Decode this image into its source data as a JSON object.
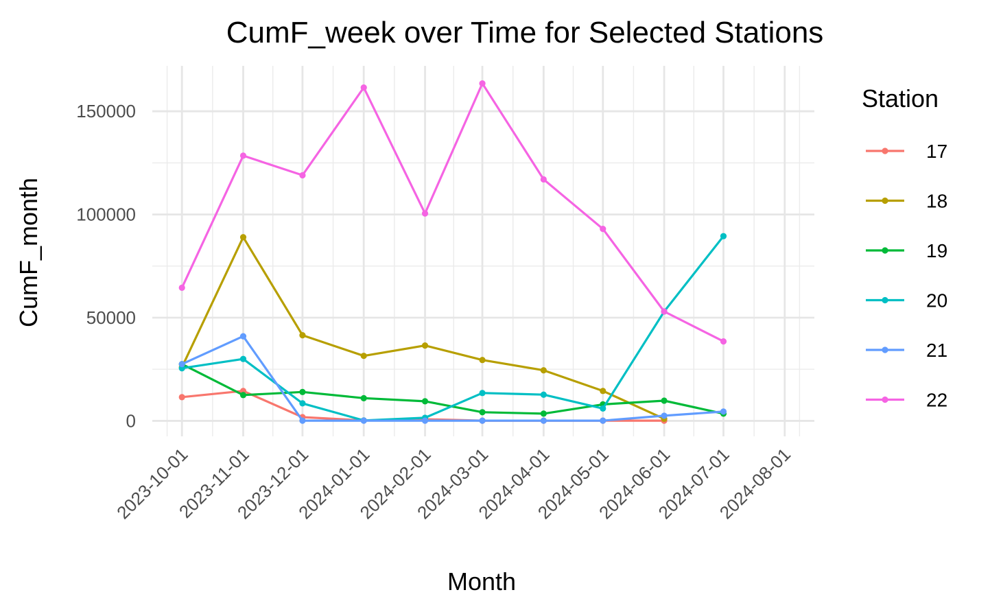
{
  "chart_data": {
    "type": "line",
    "title": "CumF_week over Time for Selected Stations",
    "xlabel": "Month",
    "ylabel": "CumF_month",
    "x_ticks": [
      "2023-10-01",
      "2023-11-01",
      "2023-12-01",
      "2024-01-01",
      "2024-02-01",
      "2024-03-01",
      "2024-04-01",
      "2024-05-01",
      "2024-06-01",
      "2024-07-01",
      "2024-08-01"
    ],
    "y_ticks": [
      0,
      50000,
      100000,
      150000
    ],
    "y_tick_labels": [
      "0",
      "50000",
      "100000",
      "150000"
    ],
    "ylim": [
      -7500,
      172000
    ],
    "xlim": [
      "2023-09-16",
      "2024-08-16"
    ],
    "grid": true,
    "legend_title": "Station",
    "legend_position": "right",
    "series": [
      {
        "name": "17",
        "color": "#F8766D",
        "x": [
          "2023-10-01",
          "2023-11-01",
          "2023-12-01",
          "2024-01-01",
          "2024-02-01",
          "2024-03-01",
          "2024-04-01",
          "2024-05-01",
          "2024-06-01"
        ],
        "values": [
          11500,
          14500,
          1800,
          200,
          800,
          100,
          100,
          100,
          100
        ]
      },
      {
        "name": "18",
        "color": "#B79F00",
        "x": [
          "2023-10-01",
          "2023-11-01",
          "2023-12-01",
          "2024-01-01",
          "2024-02-01",
          "2024-03-01",
          "2024-04-01",
          "2024-05-01",
          "2024-06-01"
        ],
        "values": [
          26000,
          89000,
          41500,
          31500,
          36500,
          29500,
          24500,
          14500,
          1000
        ]
      },
      {
        "name": "19",
        "color": "#00BA38",
        "x": [
          "2023-10-01",
          "2023-11-01",
          "2023-12-01",
          "2024-01-01",
          "2024-02-01",
          "2024-03-01",
          "2024-04-01",
          "2024-05-01",
          "2024-06-01",
          "2024-07-01"
        ],
        "values": [
          27500,
          12500,
          14000,
          11000,
          9500,
          4200,
          3500,
          8000,
          9800,
          3500
        ]
      },
      {
        "name": "20",
        "color": "#00BFC4",
        "x": [
          "2023-10-01",
          "2023-11-01",
          "2023-12-01",
          "2024-01-01",
          "2024-02-01",
          "2024-03-01",
          "2024-04-01",
          "2024-05-01",
          "2024-06-01",
          "2024-07-01"
        ],
        "values": [
          25500,
          30000,
          8500,
          200,
          1500,
          13500,
          12700,
          6000,
          53000,
          89500
        ]
      },
      {
        "name": "21",
        "color": "#619CFF",
        "x": [
          "2023-10-01",
          "2023-11-01",
          "2023-12-01",
          "2024-01-01",
          "2024-02-01",
          "2024-03-01",
          "2024-04-01",
          "2024-05-01",
          "2024-06-01",
          "2024-07-01"
        ],
        "values": [
          27500,
          41000,
          100,
          100,
          100,
          100,
          100,
          100,
          2500,
          4500
        ]
      },
      {
        "name": "22",
        "color": "#F564E3",
        "x": [
          "2023-10-01",
          "2023-11-01",
          "2023-12-01",
          "2024-01-01",
          "2024-02-01",
          "2024-03-01",
          "2024-04-01",
          "2024-05-01",
          "2024-06-01",
          "2024-07-01"
        ],
        "values": [
          64500,
          128500,
          119000,
          161500,
          100500,
          163500,
          117000,
          93000,
          53000,
          38500
        ]
      }
    ]
  }
}
